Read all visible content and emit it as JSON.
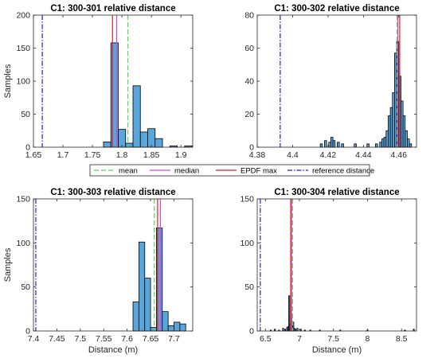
{
  "legend": {
    "placement": "center",
    "entries": [
      {
        "label": "mean",
        "color": "#4CE04C",
        "style": "dashed"
      },
      {
        "label": "median",
        "color": "#E040E0",
        "style": "solid"
      },
      {
        "label": "EPDF max",
        "color": "#E02020",
        "style": "solid"
      },
      {
        "label": "reference distance",
        "color": "#2020C0",
        "style": "dashdot"
      }
    ]
  },
  "colors": {
    "bar_fill": "#5AA6DA",
    "bar_edge": "#000000"
  },
  "chart_data": [
    {
      "type": "bar",
      "title": "C1:  300-301 relative distance",
      "xlabel": "",
      "ylabel": "Samples",
      "xlim": [
        1.65,
        1.92
      ],
      "ylim": [
        0,
        200
      ],
      "xticks": [
        1.65,
        1.7,
        1.75,
        1.8,
        1.85,
        1.9
      ],
      "xtick_labels": [
        "1.65",
        "1.7",
        "1.75",
        "1.8",
        "1.85",
        "1.9"
      ],
      "yticks": [
        0,
        50,
        100,
        150,
        200
      ],
      "bin_width": 0.0125,
      "bins": [
        {
          "x": 1.775,
          "value": 8
        },
        {
          "x": 1.7875,
          "value": 158
        },
        {
          "x": 1.8,
          "value": 27
        },
        {
          "x": 1.8125,
          "value": 6
        },
        {
          "x": 1.825,
          "value": 93
        },
        {
          "x": 1.8375,
          "value": 23
        },
        {
          "x": 1.85,
          "value": 28
        },
        {
          "x": 1.8625,
          "value": 13
        },
        {
          "x": 1.875,
          "value": 0
        },
        {
          "x": 1.8875,
          "value": 2
        },
        {
          "x": 1.9,
          "value": 0
        },
        {
          "x": 1.9125,
          "value": 2
        }
      ],
      "lines": {
        "mean": 1.81,
        "median": 1.791,
        "epdf_max": 1.784,
        "reference": 1.665
      }
    },
    {
      "type": "bar",
      "title": "C1:  300-302 relative distance",
      "xlabel": "",
      "ylabel": "",
      "xlim": [
        4.38,
        4.47
      ],
      "ylim": [
        0,
        80
      ],
      "xticks": [
        4.38,
        4.4,
        4.42,
        4.44,
        4.46
      ],
      "xtick_labels": [
        "4.38",
        "4.4",
        "4.42",
        "4.44",
        "4.46"
      ],
      "yticks": [
        0,
        20,
        40,
        60,
        80
      ],
      "bin_width": 0.0012,
      "bins": [
        {
          "x": 4.4162,
          "value": 2
        },
        {
          "x": 4.4186,
          "value": 4
        },
        {
          "x": 4.421,
          "value": 3
        },
        {
          "x": 4.4222,
          "value": 6
        },
        {
          "x": 4.4234,
          "value": 4
        },
        {
          "x": 4.4258,
          "value": 3
        },
        {
          "x": 4.4282,
          "value": 2
        },
        {
          "x": 4.4354,
          "value": 2
        },
        {
          "x": 4.4426,
          "value": 2
        },
        {
          "x": 4.4474,
          "value": 2
        },
        {
          "x": 4.4498,
          "value": 3
        },
        {
          "x": 4.451,
          "value": 5
        },
        {
          "x": 4.4522,
          "value": 6
        },
        {
          "x": 4.4534,
          "value": 10
        },
        {
          "x": 4.4546,
          "value": 19
        },
        {
          "x": 4.4558,
          "value": 24
        },
        {
          "x": 4.457,
          "value": 33
        },
        {
          "x": 4.4582,
          "value": 57
        },
        {
          "x": 4.4594,
          "value": 64
        },
        {
          "x": 4.4606,
          "value": 43
        },
        {
          "x": 4.4618,
          "value": 28
        },
        {
          "x": 4.463,
          "value": 19
        },
        {
          "x": 4.4642,
          "value": 10
        },
        {
          "x": 4.4654,
          "value": 5
        },
        {
          "x": 4.4666,
          "value": 2
        }
      ],
      "lines": {
        "mean": 4.459,
        "median": 4.4595,
        "epdf_max": 4.4605,
        "reference": 4.393
      }
    },
    {
      "type": "bar",
      "title": "C1:  300-303 relative distance",
      "xlabel": "Distance (m)",
      "ylabel": "Samples",
      "xlim": [
        7.4,
        7.74
      ],
      "ylim": [
        0,
        150
      ],
      "xticks": [
        7.4,
        7.45,
        7.5,
        7.55,
        7.6,
        7.65,
        7.7
      ],
      "xtick_labels": [
        "7.4",
        "7.45",
        "7.5",
        "7.55",
        "7.6",
        "7.65",
        "7.7"
      ],
      "yticks": [
        0,
        50,
        100,
        150
      ],
      "bin_width": 0.0125,
      "bins": [
        {
          "x": 7.6188,
          "value": 33
        },
        {
          "x": 7.6313,
          "value": 101
        },
        {
          "x": 7.6438,
          "value": 60
        },
        {
          "x": 7.6563,
          "value": 4
        },
        {
          "x": 7.6688,
          "value": 117
        },
        {
          "x": 7.6813,
          "value": 22
        },
        {
          "x": 7.6938,
          "value": 6
        },
        {
          "x": 7.7063,
          "value": 10
        },
        {
          "x": 7.7188,
          "value": 8
        }
      ],
      "lines": {
        "mean": 7.658,
        "median": 7.671,
        "epdf_max": 7.665,
        "reference": 7.405
      }
    },
    {
      "type": "bar",
      "title": "C1:  300-304 relative distance",
      "xlabel": "Distance (m)",
      "ylabel": "",
      "xlim": [
        6.38,
        8.72
      ],
      "ylim": [
        0,
        150
      ],
      "xticks": [
        6.5,
        7,
        7.5,
        8,
        8.5
      ],
      "xtick_labels": [
        "6.5",
        "7",
        "7.5",
        "8",
        "8.5"
      ],
      "yticks": [
        0,
        50,
        100,
        150
      ],
      "bin_width": 0.015,
      "bins": [
        {
          "x": 6.58,
          "value": 1
        },
        {
          "x": 6.64,
          "value": 2
        },
        {
          "x": 6.7,
          "value": 1
        },
        {
          "x": 6.76,
          "value": 3
        },
        {
          "x": 6.79,
          "value": 2
        },
        {
          "x": 6.82,
          "value": 4
        },
        {
          "x": 6.835,
          "value": 5
        },
        {
          "x": 6.85,
          "value": 40
        },
        {
          "x": 6.865,
          "value": 8
        },
        {
          "x": 6.88,
          "value": 18
        },
        {
          "x": 6.895,
          "value": 11
        },
        {
          "x": 6.91,
          "value": 10
        },
        {
          "x": 6.925,
          "value": 3
        },
        {
          "x": 6.94,
          "value": 2
        },
        {
          "x": 6.97,
          "value": 3
        },
        {
          "x": 7.02,
          "value": 2
        },
        {
          "x": 7.08,
          "value": 1
        },
        {
          "x": 7.16,
          "value": 1
        },
        {
          "x": 7.3,
          "value": 1
        },
        {
          "x": 7.6,
          "value": 1
        },
        {
          "x": 8.0,
          "value": 1
        },
        {
          "x": 8.55,
          "value": 1
        },
        {
          "x": 8.68,
          "value": 2
        }
      ],
      "lines": {
        "mean": 6.9,
        "median": 6.885,
        "epdf_max": 6.872,
        "reference": 6.425
      }
    }
  ]
}
